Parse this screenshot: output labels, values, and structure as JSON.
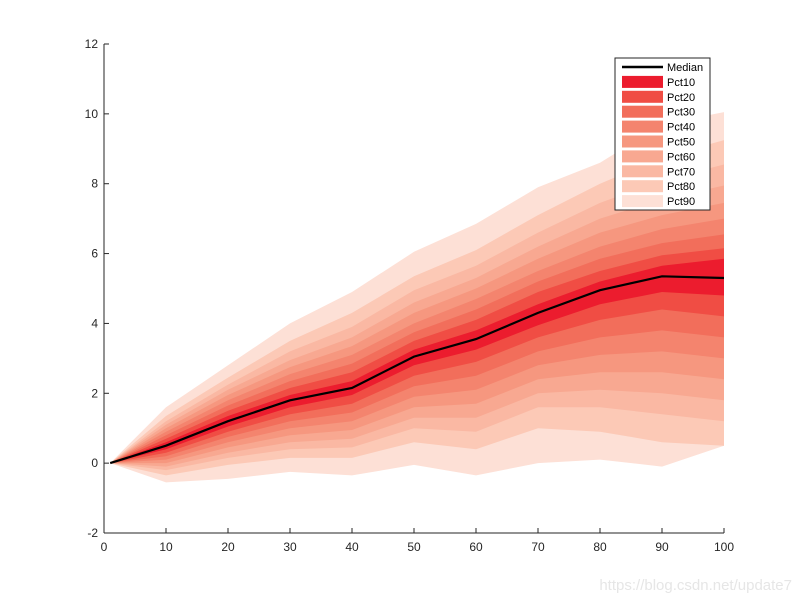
{
  "chart_data": {
    "type": "area",
    "title": "",
    "xlabel": "",
    "ylabel": "",
    "xlim": [
      0,
      100
    ],
    "ylim": [
      -2,
      12
    ],
    "xticks": [
      0,
      10,
      20,
      30,
      40,
      50,
      60,
      70,
      80,
      90,
      100
    ],
    "yticks": [
      -2,
      0,
      2,
      4,
      6,
      8,
      10,
      12
    ],
    "grid": false,
    "legend_position": "top-right",
    "x": [
      1,
      10,
      20,
      30,
      40,
      50,
      60,
      70,
      80,
      90,
      100
    ],
    "median": {
      "name": "Median",
      "color": "#000000",
      "values": [
        0,
        0.5,
        1.2,
        1.8,
        2.15,
        3.05,
        3.55,
        4.3,
        4.95,
        5.35,
        5.3
      ]
    },
    "series": [
      {
        "name": "Pct10",
        "color": "#ec1c2e",
        "lower": [
          0,
          0.4,
          1.05,
          1.6,
          1.95,
          2.8,
          3.25,
          3.95,
          4.55,
          4.9,
          4.8
        ],
        "upper": [
          0,
          0.6,
          1.35,
          1.95,
          2.35,
          3.25,
          3.8,
          4.55,
          5.2,
          5.65,
          5.85
        ]
      },
      {
        "name": "Pct20",
        "color": "#f04d44",
        "lower": [
          0,
          0.3,
          0.9,
          1.4,
          1.7,
          2.5,
          2.9,
          3.6,
          4.1,
          4.4,
          4.2
        ],
        "upper": [
          0,
          0.7,
          1.5,
          2.15,
          2.6,
          3.5,
          4.1,
          4.9,
          5.5,
          5.95,
          6.15
        ]
      },
      {
        "name": "Pct30",
        "color": "#f26e5b",
        "lower": [
          0,
          0.2,
          0.75,
          1.2,
          1.45,
          2.2,
          2.5,
          3.2,
          3.6,
          3.8,
          3.6
        ],
        "upper": [
          0,
          0.8,
          1.65,
          2.35,
          2.85,
          3.75,
          4.4,
          5.2,
          5.85,
          6.3,
          6.55
        ]
      },
      {
        "name": "Pct40",
        "color": "#f4846e",
        "lower": [
          0,
          0.1,
          0.6,
          1.0,
          1.2,
          1.9,
          2.1,
          2.8,
          3.1,
          3.2,
          3.0
        ],
        "upper": [
          0,
          0.9,
          1.8,
          2.55,
          3.1,
          4.0,
          4.7,
          5.5,
          6.2,
          6.7,
          7.0
        ]
      },
      {
        "name": "Pct50",
        "color": "#f6977f",
        "lower": [
          0,
          0.0,
          0.45,
          0.8,
          0.95,
          1.6,
          1.7,
          2.4,
          2.6,
          2.6,
          2.4
        ],
        "upper": [
          0,
          1.0,
          1.95,
          2.75,
          3.35,
          4.3,
          5.0,
          5.85,
          6.6,
          7.1,
          7.45
        ]
      },
      {
        "name": "Pct60",
        "color": "#f8a891",
        "lower": [
          0,
          -0.1,
          0.3,
          0.6,
          0.7,
          1.3,
          1.3,
          2.0,
          2.1,
          2.0,
          1.8
        ],
        "upper": [
          0,
          1.1,
          2.1,
          2.95,
          3.6,
          4.6,
          5.3,
          6.2,
          7.0,
          7.55,
          7.95
        ]
      },
      {
        "name": "Pct70",
        "color": "#fab8a3",
        "lower": [
          0,
          -0.2,
          0.15,
          0.4,
          0.45,
          1.0,
          0.9,
          1.6,
          1.6,
          1.4,
          1.2
        ],
        "upper": [
          0,
          1.2,
          2.25,
          3.2,
          3.9,
          4.95,
          5.65,
          6.6,
          7.45,
          8.1,
          8.55
        ]
      },
      {
        "name": "Pct80",
        "color": "#fcc9b6",
        "lower": [
          0,
          -0.35,
          -0.05,
          0.15,
          0.15,
          0.6,
          0.4,
          1.0,
          0.9,
          0.6,
          0.5
        ],
        "upper": [
          0,
          1.35,
          2.45,
          3.5,
          4.3,
          5.35,
          6.1,
          7.1,
          8.0,
          8.75,
          9.25
        ]
      },
      {
        "name": "Pct90",
        "color": "#fde0d6",
        "lower": [
          0,
          -0.55,
          -0.45,
          -0.25,
          -0.35,
          -0.05,
          -0.35,
          0.0,
          0.1,
          -0.1,
          0.5
        ],
        "upper": [
          0,
          1.6,
          2.8,
          4.0,
          4.9,
          6.05,
          6.85,
          7.9,
          8.6,
          9.7,
          10.05
        ]
      }
    ]
  },
  "watermark": "https://blog.csdn.net/update7"
}
